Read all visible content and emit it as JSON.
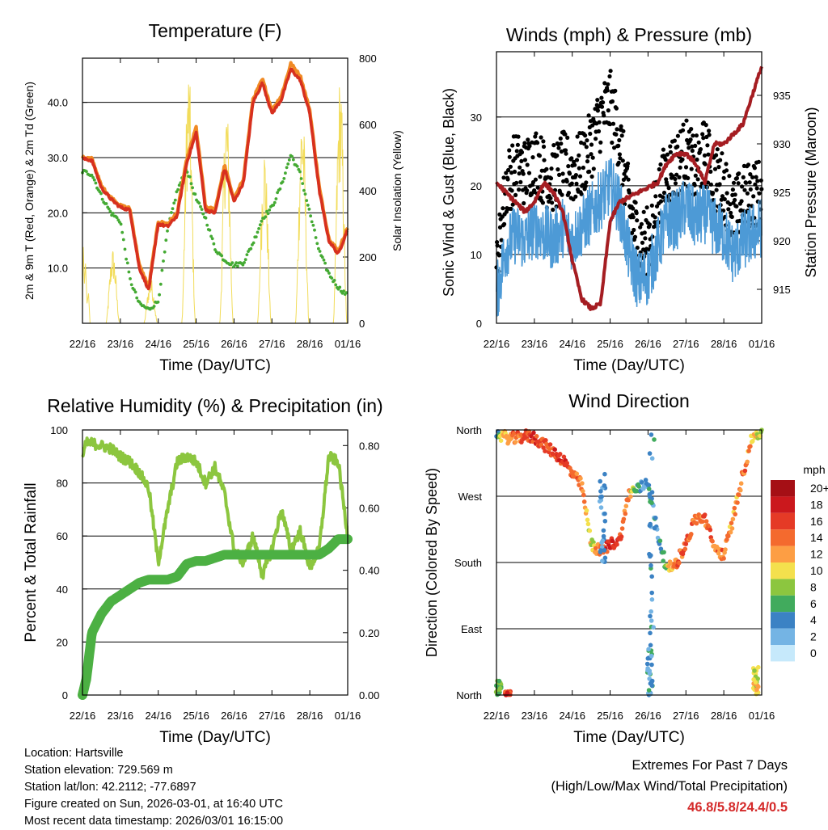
{
  "colors": {
    "temp_red": "#d7301f",
    "temp_orange": "#f08a24",
    "dewpoint_green": "#44aa33",
    "solar_yellow": "#f2dc5a",
    "wind_blue": "#4d9ad6",
    "gust_black": "#000000",
    "pressure_maroon": "#a51d22",
    "rh_light_green": "#8cc63f",
    "precip_green": "#4cb043",
    "extremes_red": "#d42a2a"
  },
  "x_ticks": [
    "22/16",
    "23/16",
    "24/16",
    "25/16",
    "26/16",
    "27/16",
    "28/16",
    "01/16"
  ],
  "chart_data": [
    {
      "id": "temperature",
      "type": "line",
      "title": "Temperature (F)",
      "xlabel": "Time (Day/UTC)",
      "ylabel": "2m & 9m T (Red, Orange) & 2m Td (Green)",
      "y2label": "Solar Insolation (Yellow)",
      "ylim": [
        0,
        48
      ],
      "y2lim": [
        0,
        800
      ],
      "y_ticks": [
        "10.0",
        "20.0",
        "30.0",
        "40.0"
      ],
      "y2_ticks": [
        "0",
        "200",
        "400",
        "600",
        "800"
      ],
      "x": [
        0,
        0.25,
        0.5,
        0.75,
        1.0,
        1.25,
        1.5,
        1.75,
        2.0,
        2.25,
        2.5,
        2.75,
        3.0,
        3.25,
        3.5,
        3.75,
        4.0,
        4.25,
        4.5,
        4.75,
        5.0,
        5.25,
        5.5,
        5.75,
        6.0,
        6.25,
        6.5,
        6.75,
        7.0
      ],
      "series": [
        {
          "name": "2m T",
          "values": [
            29.8,
            29.5,
            24.5,
            22.5,
            21.0,
            20.5,
            10.0,
            6.0,
            18.0,
            17.5,
            19.5,
            29.0,
            34.5,
            20.5,
            20.0,
            28.0,
            22.0,
            25.5,
            40.0,
            43.5,
            38.0,
            40.5,
            46.0,
            44.0,
            38.0,
            24.0,
            15.0,
            12.5,
            17.0
          ]
        },
        {
          "name": "9m T",
          "values": [
            30.0,
            29.8,
            24.8,
            22.8,
            21.3,
            20.8,
            10.5,
            6.6,
            18.4,
            18.0,
            20.0,
            29.6,
            35.5,
            21.0,
            20.6,
            28.6,
            22.4,
            26.2,
            40.6,
            44.2,
            38.6,
            41.2,
            47.0,
            44.8,
            38.6,
            24.6,
            15.5,
            13.0,
            17.4
          ]
        },
        {
          "name": "2m Td",
          "values": [
            27.5,
            27.0,
            23.0,
            20.0,
            18.5,
            8.0,
            3.5,
            2.5,
            4.0,
            17.0,
            24.0,
            28.0,
            22.5,
            19.0,
            13.5,
            11.5,
            10.5,
            11.0,
            14.5,
            19.0,
            21.0,
            25.0,
            30.5,
            27.0,
            20.0,
            13.0,
            9.0,
            6.5,
            5.0
          ]
        },
        {
          "name": "Solar Insolation",
          "axis": "right",
          "days": [
            0,
            1,
            2,
            3,
            4,
            5,
            6
          ],
          "peaks": [
            230,
            140,
            790,
            690,
            550,
            680,
            760
          ]
        }
      ]
    },
    {
      "id": "winds",
      "type": "scatter",
      "title": "Winds (mph) & Pressure (mb)",
      "xlabel": "Time (Day/UTC)",
      "ylabel": "Sonic Wind & Gust (Blue, Black)",
      "y2label": "Station Pressure (Maroon)",
      "ylim": [
        0,
        39.5
      ],
      "y2lim": [
        911.5,
        939.5
      ],
      "y_ticks": [
        "0",
        "10",
        "20",
        "30"
      ],
      "y2_ticks": [
        "915",
        "920",
        "925",
        "930",
        "935"
      ],
      "x": [
        0,
        0.25,
        0.5,
        0.75,
        1.0,
        1.25,
        1.5,
        1.75,
        2.0,
        2.25,
        2.5,
        2.75,
        3.0,
        3.25,
        3.5,
        3.75,
        4.0,
        4.25,
        4.5,
        4.75,
        5.0,
        5.25,
        5.5,
        5.75,
        6.0,
        6.25,
        6.5,
        6.75,
        7.0
      ],
      "series": [
        {
          "name": "Wind",
          "values": [
            4,
            11,
            13,
            12,
            14,
            13,
            12,
            14,
            12,
            14,
            16,
            18,
            20,
            17,
            10,
            6,
            7,
            11,
            15,
            15,
            17,
            15,
            16,
            14,
            13,
            10,
            12,
            13,
            14
          ]
        },
        {
          "name": "Gust",
          "values": [
            7,
            20,
            23,
            22,
            24,
            22,
            21,
            23,
            22,
            23,
            26,
            30,
            32,
            27,
            17,
            12,
            12,
            18,
            22,
            23,
            25,
            22,
            25,
            21,
            20,
            16,
            18,
            19,
            19
          ]
        },
        {
          "name": "Station Pressure",
          "axis": "right",
          "values": [
            926,
            925,
            924,
            923,
            924,
            926,
            925,
            923,
            918,
            914,
            913,
            913.5,
            922,
            924,
            924.5,
            925,
            925.5,
            926,
            928,
            929,
            929,
            928,
            926,
            930,
            930,
            931,
            932,
            935,
            938
          ]
        }
      ]
    },
    {
      "id": "humidity",
      "type": "line",
      "title": "Relative Humidity (%) & Precipitation (in)",
      "xlabel": "Time (Day/UTC)",
      "ylabel": "Percent & Total Rainfall",
      "ylim": [
        0,
        100
      ],
      "y2lim": [
        0,
        0.85
      ],
      "y_ticks": [
        "0",
        "20",
        "40",
        "60",
        "80",
        "100"
      ],
      "y2_ticks": [
        "0.00",
        "0.20",
        "0.40",
        "0.60",
        "0.80"
      ],
      "x": [
        0,
        0.1,
        0.25,
        0.5,
        0.75,
        1.0,
        1.25,
        1.5,
        1.75,
        2.0,
        2.25,
        2.5,
        2.75,
        3.0,
        3.25,
        3.5,
        3.75,
        4.0,
        4.25,
        4.5,
        4.75,
        5.0,
        5.25,
        5.5,
        5.75,
        6.0,
        6.25,
        6.5,
        6.75,
        7.0
      ],
      "series": [
        {
          "name": "Relative Humidity",
          "values": [
            90,
            95,
            95,
            94,
            93,
            90,
            88,
            84,
            78,
            50,
            70,
            88,
            90,
            88,
            80,
            86,
            76,
            55,
            50,
            60,
            45,
            55,
            70,
            55,
            62,
            48,
            55,
            90,
            88,
            60
          ]
        },
        {
          "name": "Total Precipitation",
          "axis": "right",
          "values": [
            0,
            0.05,
            0.2,
            0.26,
            0.3,
            0.32,
            0.34,
            0.36,
            0.37,
            0.37,
            0.37,
            0.38,
            0.42,
            0.43,
            0.43,
            0.44,
            0.45,
            0.45,
            0.45,
            0.45,
            0.45,
            0.45,
            0.45,
            0.45,
            0.45,
            0.45,
            0.45,
            0.47,
            0.5,
            0.5
          ]
        }
      ]
    },
    {
      "id": "wind_direction",
      "type": "scatter",
      "title": "Wind Direction",
      "xlabel": "Time (Day/UTC)",
      "ylabel": "Direction (Colored By Speed)",
      "ylim": [
        0,
        360
      ],
      "y_ticks": [
        "North",
        "East",
        "South",
        "West",
        "North"
      ],
      "x": [
        0,
        0.25,
        0.5,
        0.75,
        1.0,
        1.25,
        1.5,
        1.75,
        2.0,
        2.25,
        2.5,
        2.75,
        3.0,
        3.25,
        3.5,
        3.75,
        4.0,
        4.25,
        4.5,
        4.75,
        5.0,
        5.25,
        5.5,
        5.75,
        6.0,
        6.25,
        6.5,
        6.75,
        7.0
      ],
      "series": [
        {
          "name": "Direction",
          "values": [
            355,
            350,
            348,
            352,
            350,
            340,
            330,
            320,
            300,
            285,
            205,
            195,
            205,
            210,
            275,
            280,
            290,
            220,
            170,
            180,
            205,
            240,
            240,
            200,
            190,
            240,
            300,
            350,
            358
          ]
        },
        {
          "name": "Speed",
          "values": [
            5,
            12,
            14,
            15,
            16,
            15,
            15,
            16,
            15,
            13,
            9,
            15,
            17,
            16,
            12,
            5,
            3,
            4,
            9,
            14,
            15,
            13,
            15,
            13,
            14,
            12,
            14,
            12,
            8
          ]
        }
      ],
      "legend": {
        "title": "mph",
        "labels": [
          "20+",
          "18",
          "16",
          "14",
          "12",
          "10",
          "8",
          "6",
          "4",
          "2",
          "0"
        ],
        "colors": [
          "#a50f15",
          "#cb181d",
          "#e53a26",
          "#f46a2e",
          "#fd9e44",
          "#f4e04d",
          "#8cc63f",
          "#41ab5d",
          "#3b82c4",
          "#74b4e4",
          "#c6e9fb"
        ]
      }
    }
  ],
  "footer": {
    "location": "Location: Hartsville",
    "elevation": "Station elevation: 729.569 m",
    "latlon": "Station lat/lon: 42.2112; -77.6897",
    "created": "Figure created on Sun, 2026-03-01, at 16:40 UTC",
    "timestamp": "Most recent data timestamp: 2026/03/01 16:15:00"
  },
  "extremes": {
    "line1": "Extremes For Past 7 Days",
    "line2": "(High/Low/Max Wind/Total Precipitation)",
    "values": "46.8/5.8/24.4/0.5"
  }
}
